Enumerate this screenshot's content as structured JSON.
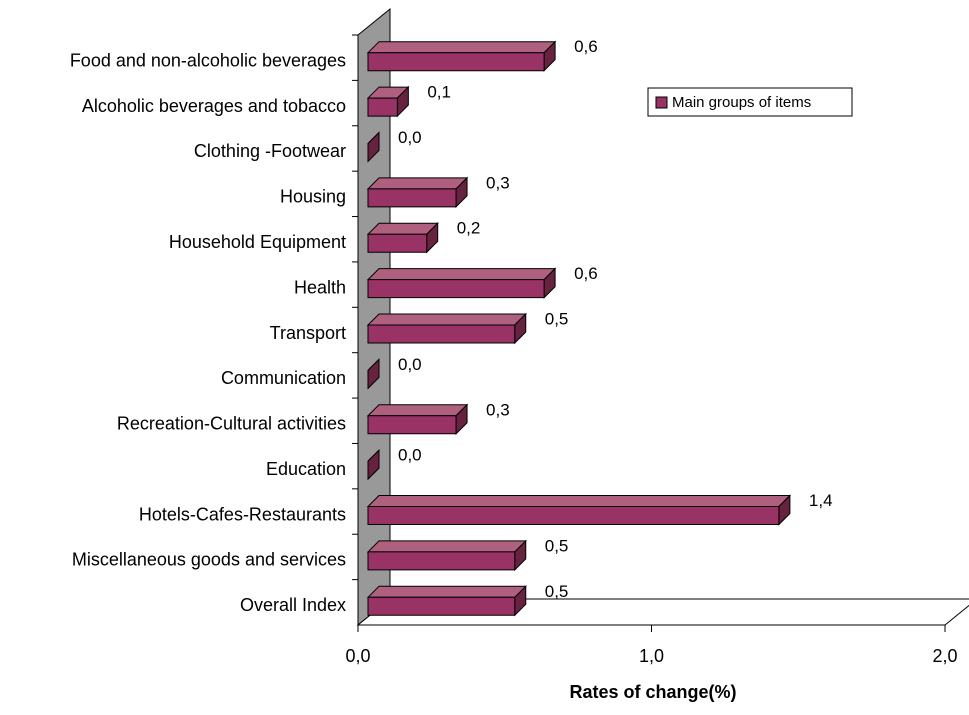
{
  "chart_data": {
    "type": "bar3d-horizontal",
    "xlabel": "Rates of change(%)",
    "categories": [
      "Food and non-alcoholic beverages",
      "Alcoholic beverages and tobacco",
      "Clothing -Footwear",
      "Housing",
      "Household Equipment",
      "Health",
      "Transport",
      "Communication",
      "Recreation-Cultural activities",
      "Education",
      "Hotels-Cafes-Restaurants",
      "Miscellaneous goods and services",
      "Overall Index"
    ],
    "series": [
      {
        "name": "Main groups of items",
        "color": "#993366",
        "values": [
          0.6,
          0.1,
          0.0,
          0.3,
          0.2,
          0.6,
          0.5,
          0.0,
          0.3,
          0.0,
          1.4,
          0.5,
          0.5
        ],
        "value_labels": [
          "0,6",
          "0,1",
          "0,0",
          "0,3",
          "0,2",
          "0,6",
          "0,5",
          "0,0",
          "0,3",
          "0,0",
          "1,4",
          "0,5",
          "0,5"
        ]
      }
    ],
    "xlim": [
      0,
      2
    ],
    "xticks": [
      {
        "value": 0,
        "label": "0,0"
      },
      {
        "value": 1,
        "label": "1,0"
      },
      {
        "value": 2,
        "label": "2,0"
      }
    ],
    "legend": "top-right"
  }
}
